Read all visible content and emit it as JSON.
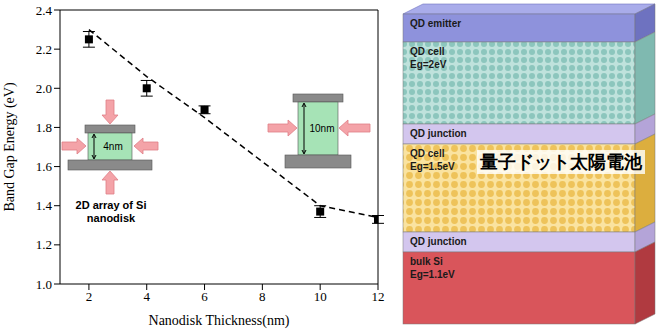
{
  "chart_data": {
    "type": "scatter",
    "x_label": "Nanodisk Thickness(nm)",
    "y_label": "Band Gap Energy (eV)",
    "xlim": [
      1,
      12
    ],
    "xticks": [
      2,
      4,
      6,
      8,
      10,
      12
    ],
    "ylim": [
      1,
      2.4
    ],
    "yticks": [
      {
        "value": 1,
        "label": "1.0"
      },
      1.2,
      1.4,
      1.6,
      1.8,
      {
        "value": 2,
        "label": "2.0"
      },
      2.2,
      2.4
    ],
    "grid": false,
    "series": [
      {
        "type": "scatter",
        "marker": "square",
        "color": "#000000",
        "x": [
          2,
          4,
          6,
          10,
          12
        ],
        "values": [
          2.25,
          2.0,
          1.89,
          1.37,
          1.33
        ],
        "errors": [
          0.04,
          0.04,
          0.02,
          0.03,
          0.02
        ]
      },
      {
        "type": "line",
        "line_style": "dashed",
        "color": "#000000",
        "x": [
          2,
          4,
          6,
          10,
          12
        ],
        "values": [
          2.3,
          2.06,
          1.85,
          1.4,
          1.34
        ]
      }
    ],
    "insets": [
      {
        "thickness": "4nm",
        "caption": "2D array of Si nanodisk"
      },
      {
        "thickness": "10nm"
      }
    ]
  },
  "diagram": {
    "title": "量子ドット太陽電池",
    "layers": [
      {
        "label": "QD emitter"
      },
      {
        "label": "QD cell",
        "band_gap": "Eg=2eV"
      },
      {
        "label": "QD junction"
      },
      {
        "label": "QD cell",
        "band_gap": "Eg=1.5eV"
      },
      {
        "label": "QD junction"
      },
      {
        "label": "bulk Si",
        "band_gap": "Eg=1.1eV"
      }
    ]
  }
}
